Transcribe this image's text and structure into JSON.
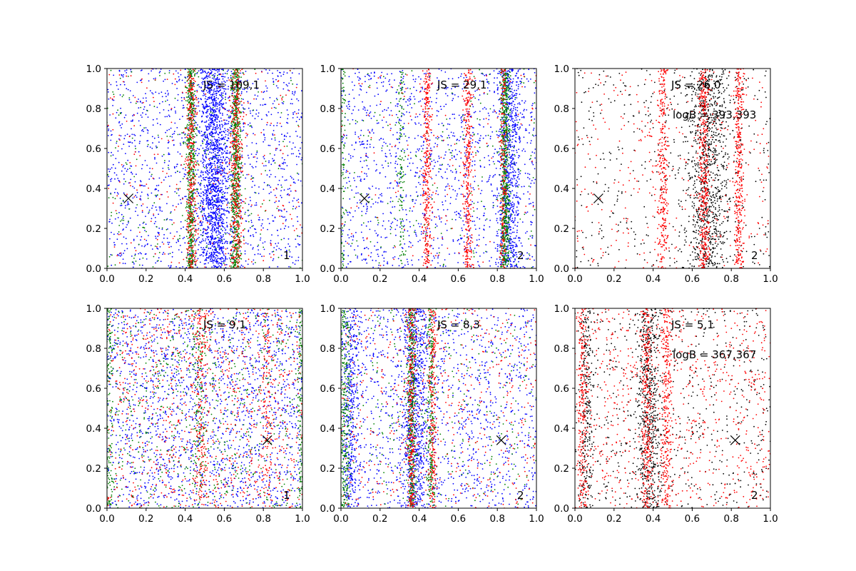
{
  "figure": {
    "background": "#ffffff",
    "colors": {
      "blue": "#0000ff",
      "green": "#008000",
      "red": "#ff0000",
      "black": "#000000"
    }
  },
  "chart_data": [
    {
      "type": "scatter",
      "title": "",
      "xlabel": "",
      "ylabel": "",
      "xlim": [
        0,
        1
      ],
      "ylim": [
        0,
        1
      ],
      "xticks": [
        "0.0",
        "0.2",
        "0.4",
        "0.6",
        "0.8",
        "1.0"
      ],
      "yticks": [
        "0.0",
        "0.2",
        "0.4",
        "0.6",
        "0.8",
        "1.0"
      ],
      "annotations": [
        "JS = 109,1"
      ],
      "panel_label": "1",
      "marker": {
        "symbol": "x",
        "x": 0.11,
        "y": 0.35
      },
      "series": [
        {
          "color": "#0000ff",
          "background_points": 1300,
          "bands": [
            {
              "center": 0.55,
              "width": 0.09,
              "points": 1500
            }
          ]
        },
        {
          "color": "#008000",
          "background_points": 250,
          "bands": [
            {
              "center": 0.43,
              "width": 0.025,
              "points": 600
            },
            {
              "center": 0.66,
              "width": 0.03,
              "points": 650
            }
          ]
        },
        {
          "color": "#ff0000",
          "background_points": 250,
          "bands": [
            {
              "center": 0.43,
              "width": 0.03,
              "points": 350
            },
            {
              "center": 0.66,
              "width": 0.035,
              "points": 400
            }
          ]
        }
      ]
    },
    {
      "type": "scatter",
      "title": "",
      "xlabel": "",
      "ylabel": "",
      "xlim": [
        0,
        1
      ],
      "ylim": [
        0,
        1
      ],
      "xticks": [
        "0.0",
        "0.2",
        "0.4",
        "0.6",
        "0.8",
        "1.0"
      ],
      "yticks": [
        "0.0",
        "0.2",
        "0.4",
        "0.6",
        "0.8",
        "1.0"
      ],
      "annotations": [
        "JS = 29,1"
      ],
      "panel_label": "2",
      "marker": {
        "symbol": "x",
        "x": 0.12,
        "y": 0.35
      },
      "series": [
        {
          "color": "#0000ff",
          "background_points": 1300,
          "bands": [
            {
              "center": 0.86,
              "width": 0.06,
              "points": 700
            }
          ]
        },
        {
          "color": "#008000",
          "background_points": 200,
          "bands": [
            {
              "center": 0.84,
              "width": 0.025,
              "points": 650
            },
            {
              "center": 0.31,
              "width": 0.02,
              "points": 120
            },
            {
              "center": 0.01,
              "width": 0.02,
              "points": 100
            }
          ]
        },
        {
          "color": "#ff0000",
          "background_points": 150,
          "bands": [
            {
              "center": 0.44,
              "width": 0.025,
              "points": 350
            },
            {
              "center": 0.65,
              "width": 0.025,
              "points": 350
            },
            {
              "center": 0.83,
              "width": 0.02,
              "points": 200
            }
          ]
        }
      ]
    },
    {
      "type": "scatter",
      "title": "",
      "xlabel": "",
      "ylabel": "",
      "xlim": [
        0,
        1
      ],
      "ylim": [
        0,
        1
      ],
      "xticks": [
        "0.0",
        "0.2",
        "0.4",
        "0.6",
        "0.8",
        "1.0"
      ],
      "yticks": [
        "0.0",
        "0.2",
        "0.4",
        "0.6",
        "0.8",
        "1.0"
      ],
      "annotations": [
        "JS = 26,0",
        "logB = 393,393"
      ],
      "panel_label": "2",
      "marker": {
        "symbol": "x",
        "x": 0.12,
        "y": 0.35
      },
      "series": [
        {
          "color": "#000000",
          "background_points": 450,
          "bands": [
            {
              "center": 0.68,
              "width": 0.12,
              "points": 900
            }
          ]
        },
        {
          "color": "#ff0000",
          "background_points": 350,
          "bands": [
            {
              "center": 0.45,
              "width": 0.03,
              "points": 300
            },
            {
              "center": 0.66,
              "width": 0.03,
              "points": 450
            },
            {
              "center": 0.84,
              "width": 0.025,
              "points": 350
            }
          ]
        }
      ]
    },
    {
      "type": "scatter",
      "title": "",
      "xlabel": "",
      "ylabel": "",
      "xlim": [
        0,
        1
      ],
      "ylim": [
        0,
        1
      ],
      "xticks": [
        "0.0",
        "0.2",
        "0.4",
        "0.6",
        "0.8",
        "1.0"
      ],
      "yticks": [
        "0.0",
        "0.2",
        "0.4",
        "0.6",
        "0.8",
        "1.0"
      ],
      "annotations": [
        "JS = 9,1"
      ],
      "panel_label": "1",
      "marker": {
        "symbol": "x",
        "x": 0.82,
        "y": 0.34
      },
      "series": [
        {
          "color": "#0000ff",
          "background_points": 1800,
          "bands": []
        },
        {
          "color": "#008000",
          "background_points": 700,
          "bands": [
            {
              "center": 0.01,
              "width": 0.02,
              "points": 150
            },
            {
              "center": 0.99,
              "width": 0.015,
              "points": 120
            },
            {
              "center": 0.47,
              "width": 0.04,
              "points": 150
            }
          ]
        },
        {
          "color": "#ff0000",
          "background_points": 900,
          "bands": [
            {
              "center": 0.48,
              "width": 0.04,
              "points": 200
            },
            {
              "center": 0.82,
              "width": 0.03,
              "points": 120
            }
          ]
        }
      ]
    },
    {
      "type": "scatter",
      "title": "",
      "xlabel": "",
      "ylabel": "",
      "xlim": [
        0,
        1
      ],
      "ylim": [
        0,
        1
      ],
      "xticks": [
        "0.0",
        "0.2",
        "0.4",
        "0.6",
        "0.8",
        "1.0"
      ],
      "yticks": [
        "0.0",
        "0.2",
        "0.4",
        "0.6",
        "0.8",
        "1.0"
      ],
      "annotations": [
        "JS = 8,3"
      ],
      "panel_label": "2",
      "marker": {
        "symbol": "x",
        "x": 0.82,
        "y": 0.34
      },
      "series": [
        {
          "color": "#0000ff",
          "background_points": 1300,
          "bands": [
            {
              "center": 0.38,
              "width": 0.08,
              "points": 700
            },
            {
              "center": 0.05,
              "width": 0.05,
              "points": 400
            }
          ]
        },
        {
          "color": "#008000",
          "background_points": 300,
          "bands": [
            {
              "center": 0.36,
              "width": 0.025,
              "points": 450
            },
            {
              "center": 0.46,
              "width": 0.025,
              "points": 250
            },
            {
              "center": 0.02,
              "width": 0.03,
              "points": 300
            }
          ]
        },
        {
          "color": "#ff0000",
          "background_points": 500,
          "bands": [
            {
              "center": 0.36,
              "width": 0.025,
              "points": 300
            },
            {
              "center": 0.47,
              "width": 0.025,
              "points": 250
            }
          ]
        }
      ]
    },
    {
      "type": "scatter",
      "title": "",
      "xlabel": "",
      "ylabel": "",
      "xlim": [
        0,
        1
      ],
      "ylim": [
        0,
        1
      ],
      "xticks": [
        "0.0",
        "0.2",
        "0.4",
        "0.6",
        "0.8",
        "1.0"
      ],
      "yticks": [
        "0.0",
        "0.2",
        "0.4",
        "0.6",
        "0.8",
        "1.0"
      ],
      "annotations": [
        "JS = 5,1",
        "logB = 367,367"
      ],
      "panel_label": "2",
      "marker": {
        "symbol": "x",
        "x": 0.82,
        "y": 0.34
      },
      "series": [
        {
          "color": "#000000",
          "background_points": 550,
          "bands": [
            {
              "center": 0.38,
              "width": 0.07,
              "points": 600
            },
            {
              "center": 0.06,
              "width": 0.04,
              "points": 250
            }
          ]
        },
        {
          "color": "#ff0000",
          "background_points": 800,
          "bands": [
            {
              "center": 0.37,
              "width": 0.03,
              "points": 300
            },
            {
              "center": 0.47,
              "width": 0.03,
              "points": 300
            },
            {
              "center": 0.04,
              "width": 0.03,
              "points": 250
            }
          ]
        }
      ]
    }
  ]
}
